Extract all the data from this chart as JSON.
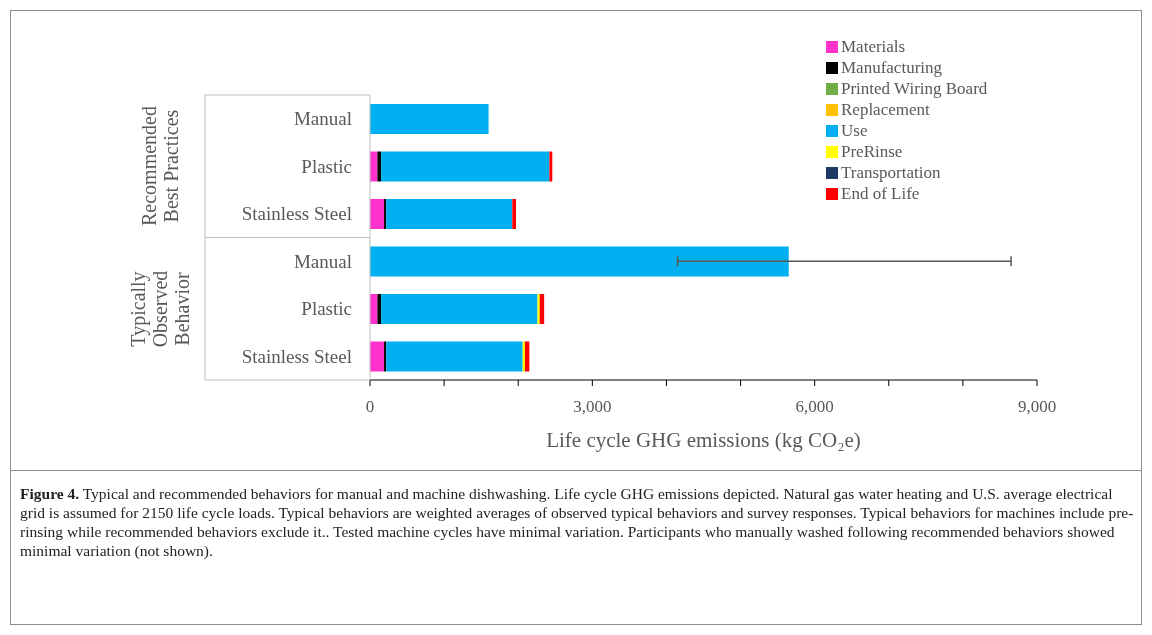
{
  "chart_data": {
    "type": "bar",
    "orientation": "horizontal",
    "stacked": true,
    "categories": [
      "Manual",
      "Plastic",
      "Stainless Steel",
      "Manual",
      "Plastic",
      "Stainless Steel"
    ],
    "series": [
      {
        "name": "Materials",
        "color": "#ff33cc",
        "values": [
          0,
          100,
          190,
          0,
          100,
          190
        ]
      },
      {
        "name": "Manufacturing",
        "color": "#000000",
        "values": [
          0,
          50,
          30,
          0,
          50,
          30
        ]
      },
      {
        "name": "Printed Wiring Board",
        "color": "#70ad47",
        "values": [
          0,
          0,
          0,
          0,
          0,
          0
        ]
      },
      {
        "name": "Replacement",
        "color": "#ffc000",
        "values": [
          0,
          0,
          0,
          0,
          0,
          0
        ]
      },
      {
        "name": "Use",
        "color": "#00b0f0",
        "values": [
          1600,
          2270,
          1700,
          5650,
          2110,
          1840
        ],
        "errors": [
          null,
          null,
          null,
          [
            4150,
            8650
          ],
          null,
          null
        ]
      },
      {
        "name": "PreRinse",
        "color": "#ffff00",
        "values": [
          0,
          0,
          0,
          0,
          30,
          30
        ]
      },
      {
        "name": "Transportation",
        "color": "#1f3864",
        "values": [
          0,
          0,
          0,
          0,
          0,
          0
        ]
      },
      {
        "name": "End of Life",
        "color": "#ff0000",
        "values": [
          0,
          40,
          50,
          0,
          60,
          60
        ]
      }
    ],
    "xlim": [
      0,
      9000
    ],
    "xticks": [
      0,
      {
        "value": 1000,
        "label": null
      },
      {
        "value": 2000,
        "label": null
      },
      {
        "value": 3000,
        "label": "3,000"
      },
      {
        "value": 4000,
        "label": null
      },
      {
        "value": 5000,
        "label": null
      },
      {
        "value": 6000,
        "label": "6,000"
      },
      {
        "value": 7000,
        "label": null
      },
      {
        "value": 8000,
        "label": null
      },
      {
        "value": 9000,
        "label": "9,000"
      }
    ],
    "xlabel": "Life cycle GHG emissions (kg CO₂e)",
    "legend": "top right",
    "grid": false,
    "annotations": [
      "Recommended Best Practices",
      "Typically Observed Behavior",
      "Figure 4.",
      "Typical and recommended behaviors for manual and machine dishwashing. Life cycle GHG emissions depicted. Natural gas water heating and U.S. average electrical grid is assumed for 2150 life cycle loads. Typical behaviors are weighted averages of observed typical behaviors and survey responses. Typical behaviors for machines include pre-rinsing while recommended behaviors exclude it.. Tested machine cycles have minimal variation. Participants who manually washed following recommended behaviors showed minimal variation (not shown)."
    ]
  }
}
